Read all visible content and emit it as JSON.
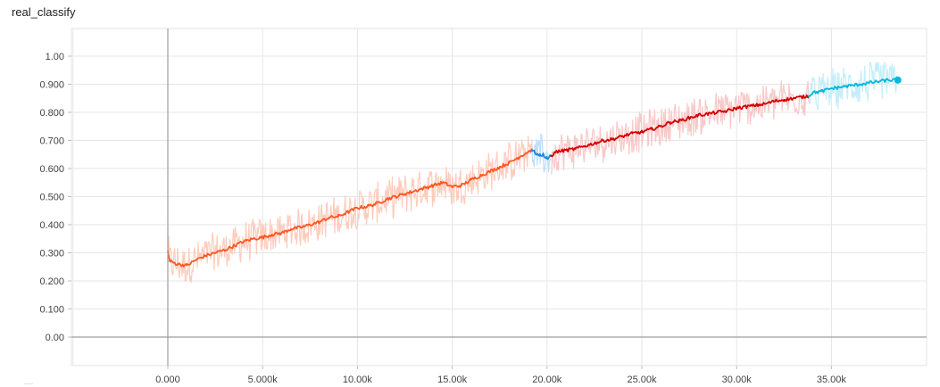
{
  "title": "real_classify",
  "chart_data": {
    "type": "line",
    "title": "real_classify",
    "xlabel": "",
    "ylabel": "",
    "xlim": [
      -5000,
      40000
    ],
    "ylim": [
      -0.1,
      1.1
    ],
    "grid": true,
    "x_ticks": [
      0,
      5000,
      10000,
      15000,
      20000,
      25000,
      30000,
      35000
    ],
    "x_tick_labels": [
      "0.000",
      "5.000k",
      "10.00k",
      "15.00k",
      "20.00k",
      "25.00k",
      "30.00k",
      "35.00k"
    ],
    "y_ticks": [
      0,
      0.1,
      0.2,
      0.3,
      0.4,
      0.5,
      0.6,
      0.7,
      0.8,
      0.9,
      1.0
    ],
    "y_tick_labels": [
      "0.00",
      "0.100",
      "0.200",
      "0.300",
      "0.400",
      "0.500",
      "0.600",
      "0.700",
      "0.800",
      "0.900",
      "1.00"
    ],
    "series": [
      {
        "color": "#ff5722",
        "raw_color": "#ffccbc",
        "x": [
          0,
          100,
          500,
          1000,
          1500,
          2000,
          2500,
          3000,
          3500,
          4000,
          4500,
          5000,
          5500,
          6000,
          6500,
          7000,
          7500,
          8000,
          8500,
          9000,
          9500,
          10000,
          10500,
          11000,
          11500,
          12000,
          12500,
          13000,
          13500,
          14000,
          14500,
          15000,
          15500,
          16000,
          16500,
          17000,
          17500,
          18000,
          18500,
          19000,
          19200
        ],
        "y": [
          0.305,
          0.27,
          0.26,
          0.255,
          0.275,
          0.29,
          0.3,
          0.31,
          0.325,
          0.34,
          0.35,
          0.355,
          0.365,
          0.37,
          0.385,
          0.39,
          0.4,
          0.41,
          0.425,
          0.43,
          0.445,
          0.46,
          0.465,
          0.475,
          0.49,
          0.5,
          0.51,
          0.52,
          0.53,
          0.54,
          0.55,
          0.535,
          0.54,
          0.56,
          0.575,
          0.59,
          0.605,
          0.62,
          0.64,
          0.66,
          0.665
        ]
      },
      {
        "color": "#1e88e5",
        "raw_color": "#bbdefb",
        "x": [
          19200,
          19400,
          19600,
          19800,
          20000,
          20200
        ],
        "y": [
          0.665,
          0.655,
          0.645,
          0.65,
          0.635,
          0.645
        ]
      },
      {
        "color": "#d50000",
        "raw_color": "#f8c8c8",
        "x": [
          20200,
          20500,
          21000,
          21500,
          22000,
          22500,
          23000,
          23500,
          24000,
          24500,
          25000,
          25500,
          26000,
          26500,
          27000,
          27500,
          28000,
          28500,
          29000,
          29500,
          30000,
          30500,
          31000,
          31500,
          32000,
          32500,
          33000,
          33500,
          33800
        ],
        "y": [
          0.645,
          0.66,
          0.665,
          0.67,
          0.68,
          0.69,
          0.7,
          0.705,
          0.715,
          0.725,
          0.73,
          0.74,
          0.75,
          0.765,
          0.77,
          0.78,
          0.79,
          0.795,
          0.8,
          0.805,
          0.815,
          0.82,
          0.825,
          0.83,
          0.84,
          0.845,
          0.85,
          0.855,
          0.858
        ]
      },
      {
        "color": "#00b8d9",
        "raw_color": "#c6eefa",
        "x": [
          33800,
          34000,
          34500,
          35000,
          35500,
          36000,
          36500,
          37000,
          37500,
          38000,
          38500
        ],
        "y": [
          0.858,
          0.87,
          0.875,
          0.885,
          0.89,
          0.895,
          0.9,
          0.905,
          0.91,
          0.915,
          0.915
        ]
      }
    ]
  }
}
